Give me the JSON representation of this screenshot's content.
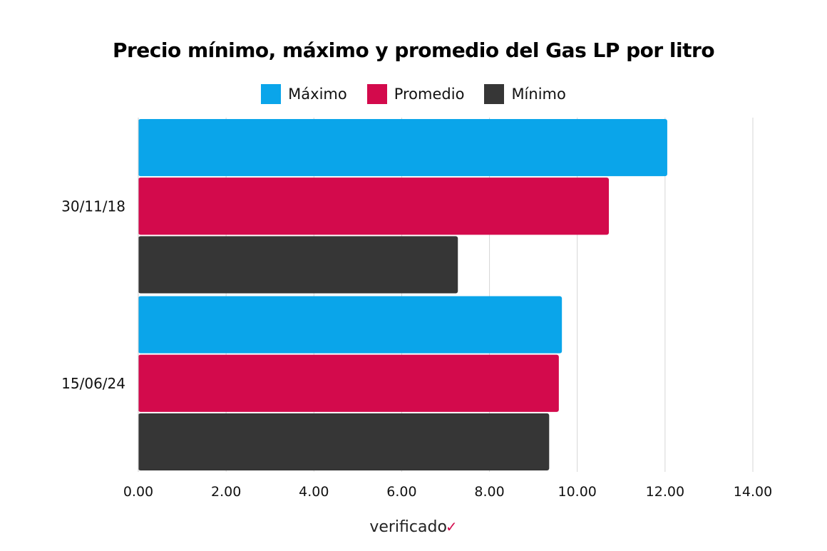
{
  "chart_data": {
    "type": "bar",
    "orientation": "horizontal",
    "title": "Precio mínimo, máximo y promedio del Gas LP por litro",
    "categories": [
      "30/11/18",
      "15/06/24"
    ],
    "series": [
      {
        "name": "Máximo",
        "color": "#0aa5ea",
        "values": [
          12.05,
          9.65
        ]
      },
      {
        "name": "Promedio",
        "color": "#d30a4c",
        "values": [
          10.72,
          9.58
        ]
      },
      {
        "name": "Mínimo",
        "color": "#363636",
        "values": [
          7.28,
          9.36
        ]
      }
    ],
    "xlim": [
      0,
      14
    ],
    "xticks": [
      "0.00",
      "2.00",
      "4.00",
      "6.00",
      "8.00",
      "10.00",
      "12.00",
      "14.00"
    ],
    "grid": true,
    "legend_position": "top-center"
  },
  "brand": {
    "text": "verificado",
    "mark": "✓"
  }
}
